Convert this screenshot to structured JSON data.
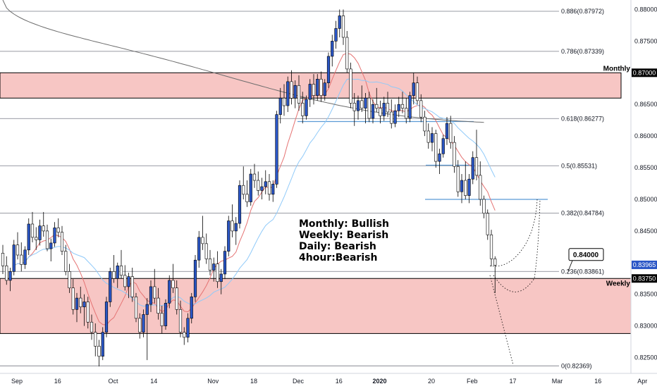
{
  "chart_data": {
    "type": "candlestick",
    "symbol_pair_view": "price chart with fibonacci retracement",
    "y_range": [
      0.8225,
      0.8815
    ],
    "price_ticks": [
      "0.88000",
      "0.87500",
      "0.87000",
      "0.86500",
      "0.86000",
      "0.85500",
      "0.85000",
      "0.84500",
      "0.84000",
      "0.83500",
      "0.83000",
      "0.82500"
    ],
    "price_tick_values": [
      0.88,
      0.875,
      0.87,
      0.865,
      0.86,
      0.855,
      0.85,
      0.845,
      0.84,
      0.835,
      0.83,
      0.825
    ],
    "x_ticks": [
      "Sep",
      "16",
      "Oct",
      "14",
      "Nov",
      "18",
      "Dec",
      "16",
      "2020",
      "20",
      "Feb",
      "17",
      "Mar",
      "16",
      "Apr"
    ],
    "x_tick_index": [
      0,
      11,
      26,
      37,
      53,
      64,
      76,
      87,
      98,
      112,
      123,
      134,
      146,
      157,
      169
    ],
    "fib_levels": [
      {
        "label": "0.886(0.87972)",
        "value": 0.87972
      },
      {
        "label": "0.786(0.87339)",
        "value": 0.87339
      },
      {
        "label": "0.618(0.86277)",
        "value": 0.86277
      },
      {
        "label": "0.5(0.85531)",
        "value": 0.85531
      },
      {
        "label": "0.382(0.84784)",
        "value": 0.84784
      },
      {
        "label": "0.236(0.83861)",
        "value": 0.83861
      },
      {
        "label": "0(0.82369)",
        "value": 0.82369
      }
    ],
    "zones": [
      {
        "name": "Monthly",
        "top": 0.87,
        "bottom": 0.866,
        "color": "#f7c6c4"
      },
      {
        "name": "Weekly",
        "top": 0.8375,
        "bottom": 0.8288,
        "color": "#f7c6c4"
      }
    ],
    "price_badges": [
      {
        "text": "0.87000",
        "value": 0.87,
        "color": "#000000"
      },
      {
        "text": "0.83965",
        "value": 0.83965,
        "color": "#2a56c6"
      },
      {
        "text": "0.83750",
        "value": 0.8375,
        "color": "#000000"
      }
    ],
    "callout": {
      "text": "0.84000",
      "value": 0.84
    },
    "annotations": [
      "Monthly: Bullish",
      "Weekly: Bearish",
      "Daily: Bearish",
      "4hour:Bearish"
    ],
    "colors": {
      "up": "#2a56c6",
      "down": "#ffffff",
      "wick": "#000000",
      "zone": "#f7c6c4",
      "hline": "#5b9bd5",
      "ma_fast": "#e57373",
      "ma_mid": "#90caf9",
      "ma_slow": "#6d6d6d"
    }
  },
  "ohlc": [
    [
      0.8415,
      0.8428,
      0.8382,
      0.8395
    ],
    [
      0.8395,
      0.841,
      0.8365,
      0.8372
    ],
    [
      0.8372,
      0.8392,
      0.8355,
      0.8386
    ],
    [
      0.8386,
      0.8436,
      0.838,
      0.8428
    ],
    [
      0.8428,
      0.8448,
      0.8405,
      0.8412
    ],
    [
      0.8412,
      0.8432,
      0.8386,
      0.8397
    ],
    [
      0.8397,
      0.8426,
      0.839,
      0.842
    ],
    [
      0.842,
      0.847,
      0.8412,
      0.8461
    ],
    [
      0.8461,
      0.848,
      0.8432,
      0.844
    ],
    [
      0.844,
      0.8456,
      0.842,
      0.8436
    ],
    [
      0.8436,
      0.8468,
      0.8427,
      0.8458
    ],
    [
      0.8458,
      0.848,
      0.8441,
      0.845
    ],
    [
      0.845,
      0.846,
      0.8418,
      0.8422
    ],
    [
      0.8422,
      0.8438,
      0.8402,
      0.8431
    ],
    [
      0.8431,
      0.8464,
      0.8425,
      0.8455
    ],
    [
      0.8455,
      0.847,
      0.844,
      0.8448
    ],
    [
      0.8448,
      0.8458,
      0.8412,
      0.8418
    ],
    [
      0.8418,
      0.8428,
      0.838,
      0.8386
    ],
    [
      0.8386,
      0.8398,
      0.8352,
      0.836
    ],
    [
      0.836,
      0.8374,
      0.8318,
      0.8326
    ],
    [
      0.8326,
      0.8352,
      0.8306,
      0.8344
    ],
    [
      0.8344,
      0.8362,
      0.832,
      0.833
    ],
    [
      0.833,
      0.835,
      0.83,
      0.8338
    ],
    [
      0.8338,
      0.8346,
      0.8296,
      0.8306
    ],
    [
      0.8306,
      0.8318,
      0.8278,
      0.829
    ],
    [
      0.829,
      0.8304,
      0.8252,
      0.8268
    ],
    [
      0.8268,
      0.8278,
      0.8236,
      0.8252
    ],
    [
      0.8252,
      0.8298,
      0.8246,
      0.829
    ],
    [
      0.829,
      0.8346,
      0.8282,
      0.8338
    ],
    [
      0.8338,
      0.8392,
      0.833,
      0.8386
    ],
    [
      0.8386,
      0.8412,
      0.8368,
      0.8375
    ],
    [
      0.8375,
      0.84,
      0.836,
      0.8395
    ],
    [
      0.8395,
      0.842,
      0.8375,
      0.838
    ],
    [
      0.838,
      0.8396,
      0.8356,
      0.8362
    ],
    [
      0.8362,
      0.8384,
      0.8344,
      0.8378
    ],
    [
      0.8378,
      0.8392,
      0.8338,
      0.8346
    ],
    [
      0.8346,
      0.8352,
      0.8306,
      0.8312
    ],
    [
      0.8312,
      0.832,
      0.828,
      0.829
    ],
    [
      0.829,
      0.8326,
      0.8282,
      0.8318
    ],
    [
      0.8318,
      0.8344,
      0.8246,
      0.8334
    ],
    [
      0.8334,
      0.8372,
      0.8322,
      0.8362
    ],
    [
      0.8362,
      0.839,
      0.8336,
      0.8344
    ],
    [
      0.8344,
      0.836,
      0.831,
      0.832
    ],
    [
      0.832,
      0.8332,
      0.8288,
      0.83
    ],
    [
      0.83,
      0.8342,
      0.8294,
      0.8336
    ],
    [
      0.8336,
      0.838,
      0.8328,
      0.8372
    ],
    [
      0.8372,
      0.8398,
      0.8352,
      0.836
    ],
    [
      0.836,
      0.8372,
      0.8318,
      0.8326
    ],
    [
      0.8326,
      0.834,
      0.8282,
      0.829
    ],
    [
      0.829,
      0.8298,
      0.827,
      0.8282
    ],
    [
      0.8282,
      0.832,
      0.8274,
      0.8312
    ],
    [
      0.8312,
      0.8352,
      0.8304,
      0.8346
    ],
    [
      0.8346,
      0.8412,
      0.8338,
      0.8404
    ],
    [
      0.8404,
      0.845,
      0.8392,
      0.844
    ],
    [
      0.844,
      0.8474,
      0.842,
      0.843
    ],
    [
      0.843,
      0.8446,
      0.8398,
      0.8406
    ],
    [
      0.8406,
      0.842,
      0.838,
      0.8388
    ],
    [
      0.8388,
      0.8408,
      0.837,
      0.8398
    ],
    [
      0.8398,
      0.8418,
      0.836,
      0.837
    ],
    [
      0.837,
      0.839,
      0.835,
      0.8382
    ],
    [
      0.8382,
      0.8426,
      0.8374,
      0.8418
    ],
    [
      0.8418,
      0.8474,
      0.841,
      0.8466
    ],
    [
      0.8466,
      0.8492,
      0.844,
      0.845
    ],
    [
      0.845,
      0.8472,
      0.8428,
      0.8462
    ],
    [
      0.8462,
      0.853,
      0.8454,
      0.8522
    ],
    [
      0.8522,
      0.8552,
      0.85,
      0.8508
    ],
    [
      0.8508,
      0.853,
      0.8488,
      0.8496
    ],
    [
      0.8496,
      0.8548,
      0.849,
      0.854
    ],
    [
      0.854,
      0.8556,
      0.8518,
      0.853
    ],
    [
      0.853,
      0.8544,
      0.8506,
      0.8514
    ],
    [
      0.8514,
      0.8534,
      0.85,
      0.852
    ],
    [
      0.852,
      0.8546,
      0.8508,
      0.8528
    ],
    [
      0.8528,
      0.854,
      0.8498,
      0.8508
    ],
    [
      0.8508,
      0.853,
      0.8496,
      0.8524
    ],
    [
      0.8524,
      0.864,
      0.8518,
      0.8634
    ],
    [
      0.8634,
      0.8676,
      0.862,
      0.866
    ],
    [
      0.866,
      0.8682,
      0.8632,
      0.8648
    ],
    [
      0.8648,
      0.8694,
      0.8638,
      0.8686
    ],
    [
      0.8686,
      0.8704,
      0.865,
      0.866
    ],
    [
      0.866,
      0.8688,
      0.8644,
      0.868
    ],
    [
      0.868,
      0.8696,
      0.864,
      0.8652
    ],
    [
      0.8652,
      0.867,
      0.862,
      0.8632
    ],
    [
      0.8632,
      0.8664,
      0.8626,
      0.8658
    ],
    [
      0.8658,
      0.869,
      0.8646,
      0.8682
    ],
    [
      0.8682,
      0.8698,
      0.865,
      0.8664
    ],
    [
      0.8664,
      0.8698,
      0.8656,
      0.869
    ],
    [
      0.869,
      0.8702,
      0.8654,
      0.8664
    ],
    [
      0.8664,
      0.869,
      0.8656,
      0.8684
    ],
    [
      0.8684,
      0.8732,
      0.8676,
      0.8726
    ],
    [
      0.8726,
      0.876,
      0.871,
      0.875
    ],
    [
      0.875,
      0.8782,
      0.8738,
      0.877
    ],
    [
      0.877,
      0.88,
      0.8756,
      0.879
    ],
    [
      0.879,
      0.88,
      0.8744,
      0.8756
    ],
    [
      0.8756,
      0.8766,
      0.87,
      0.8706
    ],
    [
      0.8706,
      0.8716,
      0.8644,
      0.8652
    ],
    [
      0.8652,
      0.8668,
      0.8616,
      0.864
    ],
    [
      0.864,
      0.8664,
      0.8626,
      0.8656
    ],
    [
      0.8656,
      0.868,
      0.8638,
      0.8644
    ],
    [
      0.8644,
      0.8668,
      0.862,
      0.866
    ],
    [
      0.866,
      0.867,
      0.8622,
      0.8628
    ],
    [
      0.8628,
      0.8658,
      0.862,
      0.865
    ],
    [
      0.865,
      0.8676,
      0.8638,
      0.8644
    ],
    [
      0.8644,
      0.8656,
      0.862,
      0.8632
    ],
    [
      0.8632,
      0.8662,
      0.8624,
      0.8652
    ],
    [
      0.8652,
      0.867,
      0.863,
      0.8638
    ],
    [
      0.8638,
      0.8658,
      0.8612,
      0.862
    ],
    [
      0.862,
      0.865,
      0.8614,
      0.864
    ],
    [
      0.864,
      0.8662,
      0.863,
      0.865
    ],
    [
      0.865,
      0.867,
      0.8636,
      0.8644
    ],
    [
      0.8644,
      0.866,
      0.862,
      0.8628
    ],
    [
      0.8628,
      0.867,
      0.8622,
      0.8664
    ],
    [
      0.8664,
      0.87,
      0.865,
      0.8684
    ],
    [
      0.8684,
      0.8694,
      0.865,
      0.8656
    ],
    [
      0.8656,
      0.8666,
      0.8622,
      0.863
    ],
    [
      0.863,
      0.864,
      0.86,
      0.8608
    ],
    [
      0.8608,
      0.862,
      0.858,
      0.859
    ],
    [
      0.859,
      0.8614,
      0.8576,
      0.8604
    ],
    [
      0.8604,
      0.861,
      0.855,
      0.856
    ],
    [
      0.856,
      0.858,
      0.854,
      0.8572
    ],
    [
      0.8572,
      0.8602,
      0.8566,
      0.8596
    ],
    [
      0.8596,
      0.863,
      0.8586,
      0.862
    ],
    [
      0.862,
      0.8632,
      0.858,
      0.859
    ],
    [
      0.859,
      0.86,
      0.8542,
      0.8552
    ],
    [
      0.8552,
      0.8562,
      0.8504,
      0.8512
    ],
    [
      0.8512,
      0.854,
      0.8494,
      0.853
    ],
    [
      0.853,
      0.856,
      0.85,
      0.8506
    ],
    [
      0.8506,
      0.854,
      0.8494,
      0.8532
    ],
    [
      0.8532,
      0.8576,
      0.8524,
      0.8566
    ],
    [
      0.8566,
      0.861,
      0.853,
      0.8538
    ],
    [
      0.8538,
      0.856,
      0.849,
      0.85
    ],
    [
      0.85,
      0.8506,
      0.847,
      0.8478
    ],
    [
      0.8478,
      0.8484,
      0.8436,
      0.8444
    ],
    [
      0.8444,
      0.8452,
      0.8394,
      0.8406
    ],
    [
      0.8406,
      0.841,
      0.8352,
      0.8396
    ]
  ]
}
